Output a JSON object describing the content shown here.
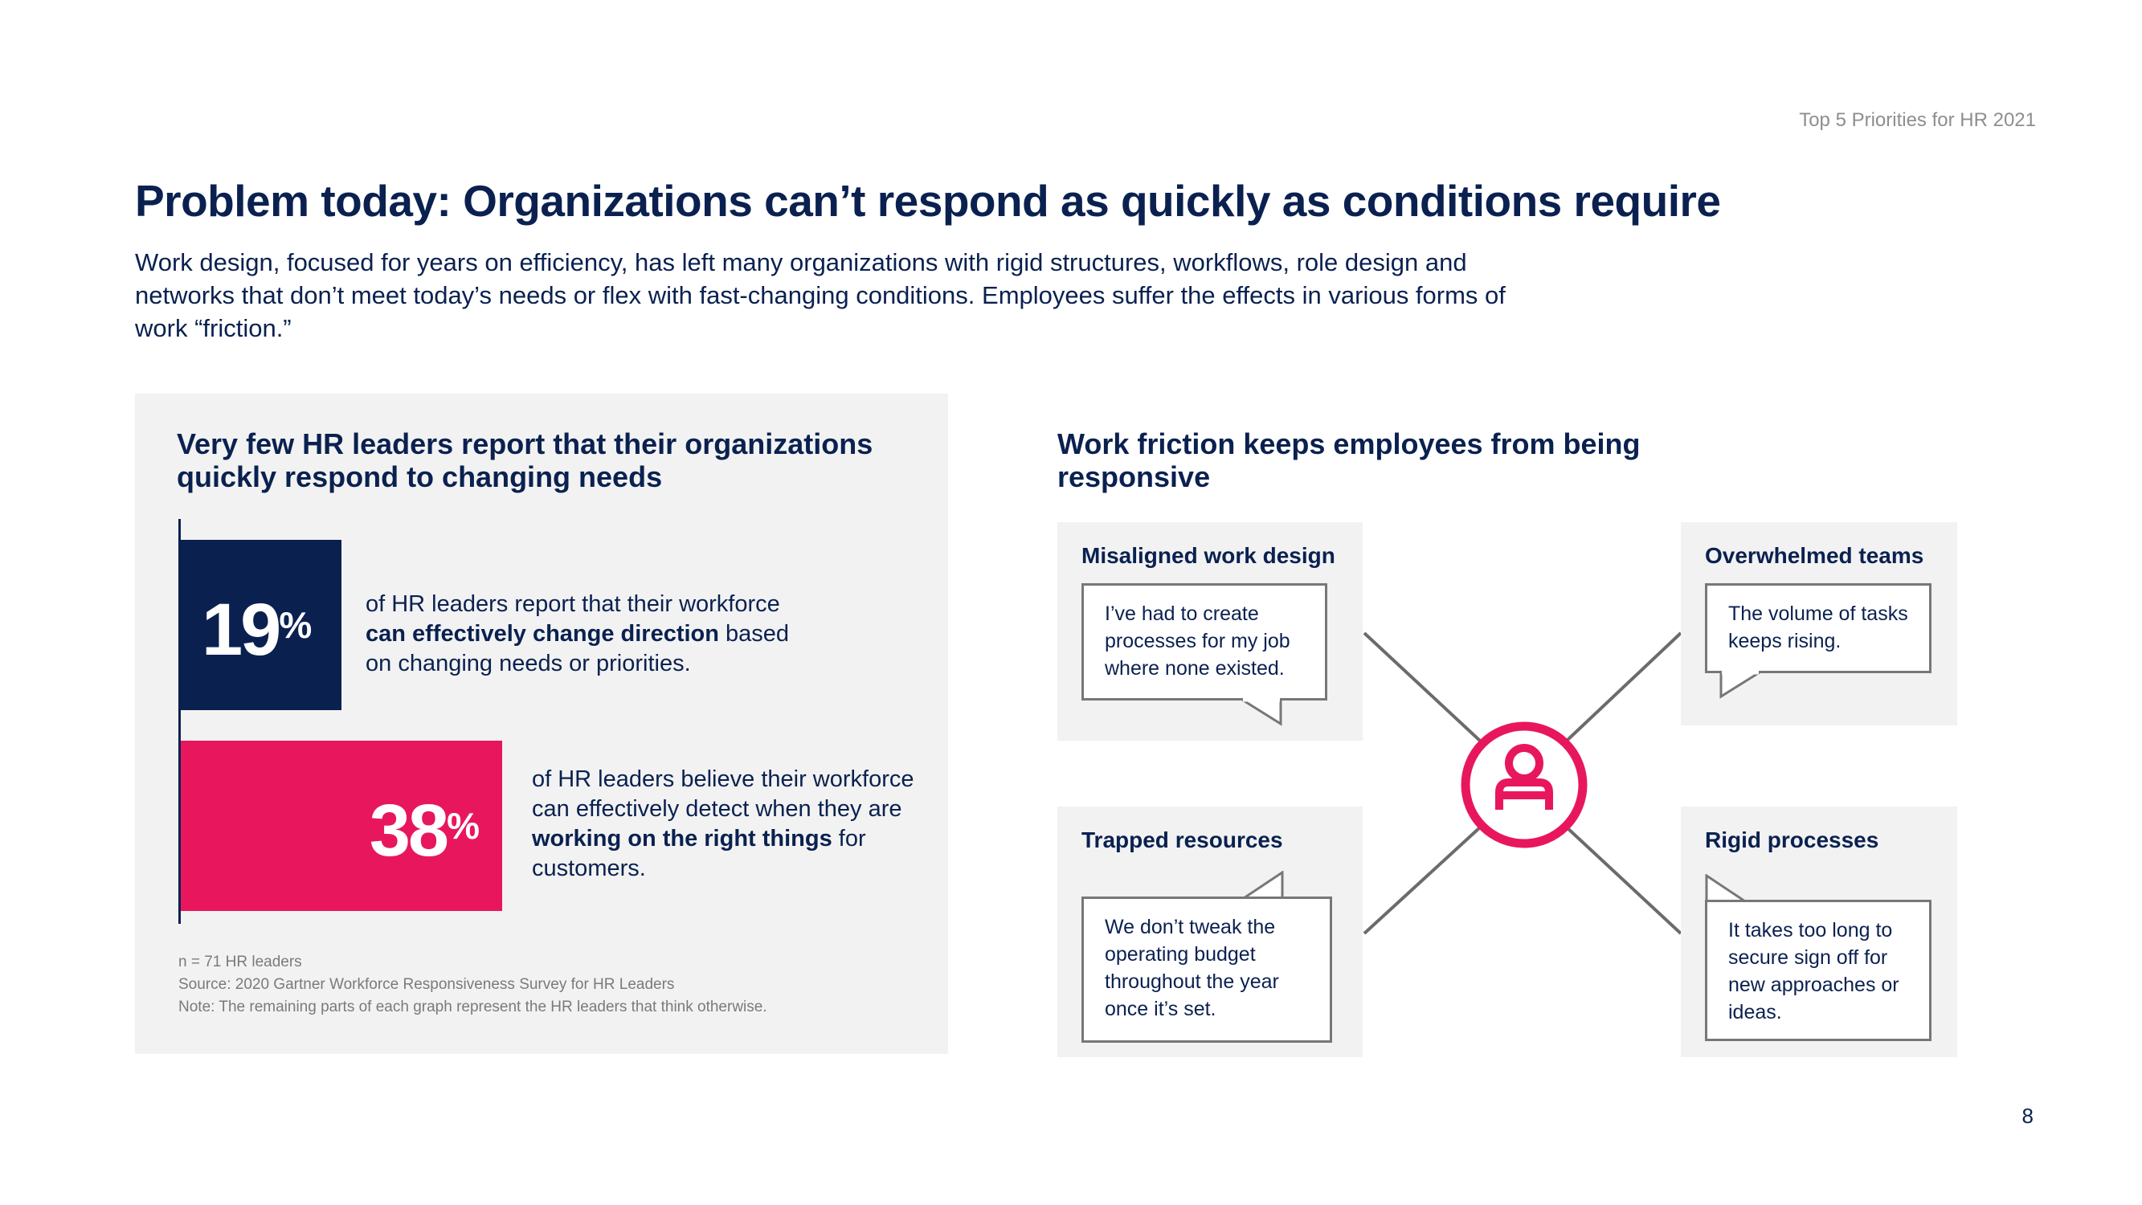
{
  "header": {
    "label": "Top 5 Priorities for HR 2021"
  },
  "title": "Problem today: Organizations can’t respond as quickly as conditions require",
  "intro": "Work design, focused for years on efficiency, has left many organizations with rigid structures, workflows, role design and networks that don’t meet today’s needs or flex with fast-changing conditions. Employees suffer the effects in various forms of work “friction.”",
  "left_panel": {
    "title": "Very few HR leaders report that their organizations quickly respond to changing needs",
    "notes": {
      "n": "n = 71 HR leaders",
      "source": "Source: 2020 Gartner Workforce Responsiveness Survey for HR Leaders",
      "note": "Note: The remaining parts of each graph represent the HR leaders that think otherwise."
    }
  },
  "chart_data": {
    "type": "bar",
    "orientation": "horizontal",
    "categories": [
      "can effectively change direction",
      "working on the right things"
    ],
    "values": [
      19,
      38
    ],
    "unit": "%",
    "colors": [
      "#0a2150",
      "#e8175d"
    ],
    "stats": [
      {
        "value": "19",
        "unit": "%",
        "text_before": "of HR leaders report that their workforce ",
        "bold": "can effectively change direction",
        "text_after": " based on changing needs or priorities."
      },
      {
        "value": "38",
        "unit": "%",
        "text_before": "of HR leaders believe their workforce can effectively detect when they are ",
        "bold": "working on the right things",
        "text_after": " for customers."
      }
    ]
  },
  "right_panel": {
    "title": "Work friction keeps employees from being responsive",
    "center_icon": "person-icon",
    "cards": {
      "misaligned": {
        "title": "Misaligned work design",
        "quote": "I’ve had to create processes for my job where none existed."
      },
      "overwhelmed": {
        "title": "Overwhelmed teams",
        "quote": "The volume of tasks keeps rising."
      },
      "trapped": {
        "title": "Trapped resources",
        "quote": "We don’t tweak the operating budget throughout the year once it’s set."
      },
      "rigid": {
        "title": "Rigid processes",
        "quote": "It takes too long to secure sign off for new approaches or ideas."
      }
    }
  },
  "page_number": "8",
  "colors": {
    "navy": "#0a2150",
    "magenta": "#e8175d",
    "panel": "#f2f2f2"
  }
}
